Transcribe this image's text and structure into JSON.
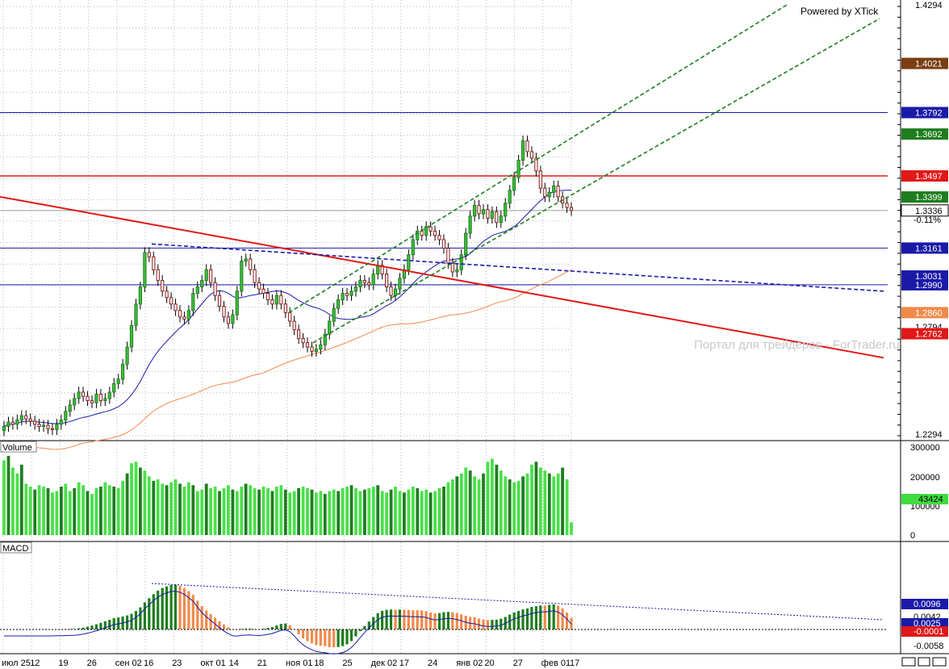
{
  "header": {
    "powered_by": "Powered by XTick"
  },
  "watermark": "Портал для трейдеров - ForTrader.ru",
  "chart_data": [
    {
      "type": "candlestick",
      "panel": "price",
      "ylim": [
        1.2294,
        1.4294
      ],
      "y_ticks_printed": [
        1.4294,
        1.2294
      ],
      "horizontal_levels": [
        {
          "label": "1.4021",
          "value": 1.4021,
          "color": "#7a3e12",
          "line": false
        },
        {
          "label": "1.3792",
          "value": 1.3792,
          "color": "#1a1aa8",
          "line": true
        },
        {
          "label": "1.3692",
          "value": 1.3692,
          "color": "#1e7d1e",
          "line": false
        },
        {
          "label": "1.3497",
          "value": 1.3497,
          "color": "#e01818",
          "line": true
        },
        {
          "label": "1.3399",
          "value": 1.3399,
          "color": "#1e7d1e",
          "line": false
        },
        {
          "label": "1.3336",
          "value": 1.3336,
          "color": "#ffffff",
          "line": true
        },
        {
          "label": "1.3161",
          "value": 1.3161,
          "color": "#1a1aa8",
          "line": true
        },
        {
          "label": "1.3031",
          "value": 1.3031,
          "color": "#1a1aa8",
          "line": false
        },
        {
          "label": "1.2990",
          "value": 1.299,
          "color": "#1a1aa8",
          "line": true
        },
        {
          "label": "1.2860",
          "value": 1.286,
          "color": "#f08a4b",
          "line": false
        },
        {
          "label": "1.2794",
          "value": 1.2794,
          "color": "#ffffff",
          "line": false
        },
        {
          "label": "1.2762",
          "value": 1.2762,
          "color": "#e01818",
          "line": false
        }
      ],
      "last_change": "-0.11%",
      "x_tick_labels": [
        "июл 25",
        "12",
        "19",
        "26",
        "сен 02",
        "16",
        "23",
        "окт 01",
        "14",
        "21",
        "ноя 01",
        "18",
        "25",
        "дек 02",
        "17",
        "24",
        "янв 02",
        "20",
        "27",
        "фев 01",
        "17"
      ],
      "closes": [
        1.233,
        1.235,
        1.234,
        1.236,
        1.238,
        1.2365,
        1.2355,
        1.234,
        1.233,
        1.2335,
        1.232,
        1.2315,
        1.234,
        1.236,
        1.24,
        1.243,
        1.246,
        1.249,
        1.247,
        1.245,
        1.244,
        1.248,
        1.245,
        1.246,
        1.249,
        1.253,
        1.255,
        1.262,
        1.27,
        1.28,
        1.29,
        1.298,
        1.314,
        1.312,
        1.306,
        1.301,
        1.296,
        1.293,
        1.29,
        1.287,
        1.284,
        1.283,
        1.287,
        1.295,
        1.298,
        1.301,
        1.306,
        1.3,
        1.294,
        1.289,
        1.284,
        1.281,
        1.285,
        1.296,
        1.31,
        1.311,
        1.306,
        1.3,
        1.297,
        1.295,
        1.292,
        1.29,
        1.294,
        1.29,
        1.286,
        1.282,
        1.278,
        1.274,
        1.272,
        1.27,
        1.268,
        1.269,
        1.271,
        1.276,
        1.282,
        1.288,
        1.292,
        1.295,
        1.294,
        1.296,
        1.298,
        1.301,
        1.3,
        1.299,
        1.304,
        1.308,
        1.304,
        1.298,
        1.294,
        1.297,
        1.302,
        1.306,
        1.313,
        1.32,
        1.324,
        1.322,
        1.326,
        1.324,
        1.322,
        1.32,
        1.316,
        1.309,
        1.305,
        1.306,
        1.313,
        1.323,
        1.331,
        1.336,
        1.332,
        1.334,
        1.33,
        1.333,
        1.328,
        1.331,
        1.337,
        1.343,
        1.349,
        1.357,
        1.366,
        1.361,
        1.358,
        1.352,
        1.344,
        1.34,
        1.342,
        1.345,
        1.34,
        1.337,
        1.335,
        1.3336
      ],
      "moving_averages": [
        {
          "color": "#1a1aa8",
          "period": 20
        },
        {
          "color": "#f08a4b",
          "period": 60
        }
      ],
      "trendlines": [
        {
          "kind": "resistance",
          "style": "solid",
          "color": "#e01818",
          "from": [
            "июл 25",
            1.34
          ],
          "to": [
            "фев 17",
            1.265
          ]
        },
        {
          "kind": "channel-upper",
          "style": "dashed",
          "color": "#1e7d1e",
          "from": [
            "18",
            1.286
          ],
          "to": [
            "фев 17",
            1.4294
          ]
        },
        {
          "kind": "channel-lower",
          "style": "dashed",
          "color": "#1e7d1e",
          "from": [
            "18",
            1.272
          ],
          "to": [
            "фев 17",
            1.423
          ]
        },
        {
          "kind": "support",
          "style": "dashed",
          "color": "#1a1aa8",
          "from": [
            "16",
            1.318
          ],
          "to": [
            "фев 17",
            1.296
          ]
        }
      ]
    },
    {
      "type": "bar",
      "panel": "volume",
      "title": "Volume",
      "ylim": [
        0,
        300000
      ],
      "y_ticks": [
        "300000",
        "200000",
        "100000",
        "0"
      ],
      "last_value_label": "43424",
      "values": [
        255000,
        270000,
        230000,
        210000,
        240000,
        175000,
        165000,
        155000,
        170000,
        165000,
        160000,
        145000,
        150000,
        165000,
        175000,
        150000,
        160000,
        180000,
        170000,
        150000,
        140000,
        160000,
        165000,
        180000,
        170000,
        165000,
        160000,
        185000,
        210000,
        245000,
        250000,
        230000,
        220000,
        200000,
        185000,
        190000,
        175000,
        170000,
        180000,
        190000,
        175000,
        165000,
        180000,
        170000,
        150000,
        155000,
        175000,
        160000,
        165000,
        150000,
        160000,
        170000,
        155000,
        150000,
        165000,
        175000,
        170000,
        160000,
        155000,
        165000,
        160000,
        150000,
        165000,
        170000,
        155000,
        145000,
        150000,
        160000,
        165000,
        160000,
        155000,
        145000,
        150000,
        140000,
        150000,
        155000,
        150000,
        160000,
        165000,
        170000,
        160000,
        150000,
        155000,
        160000,
        165000,
        170000,
        150000,
        145000,
        155000,
        165000,
        150000,
        145000,
        155000,
        165000,
        160000,
        150000,
        155000,
        145000,
        150000,
        160000,
        165000,
        180000,
        190000,
        200000,
        210000,
        230000,
        220000,
        200000,
        190000,
        210000,
        250000,
        260000,
        240000,
        220000,
        200000,
        190000,
        180000,
        185000,
        200000,
        210000,
        240000,
        250000,
        230000,
        220000,
        210000,
        200000,
        210000,
        230000,
        190000,
        43424
      ]
    },
    {
      "type": "bar",
      "panel": "macd",
      "title": "MACD",
      "y_ticks": [
        "-0.0058"
      ],
      "levels": [
        {
          "label": "0.0096",
          "value": 0.0096,
          "color": "#1a1aa8"
        },
        {
          "label": "0.0042",
          "value": 0.0042,
          "color": "#ffffff"
        },
        {
          "label": "0.0025",
          "value": 0.0025,
          "color": "#1a1aa8"
        },
        {
          "label": "-0.0001",
          "value": -0.0001,
          "color": "#e01818"
        }
      ]
    }
  ]
}
